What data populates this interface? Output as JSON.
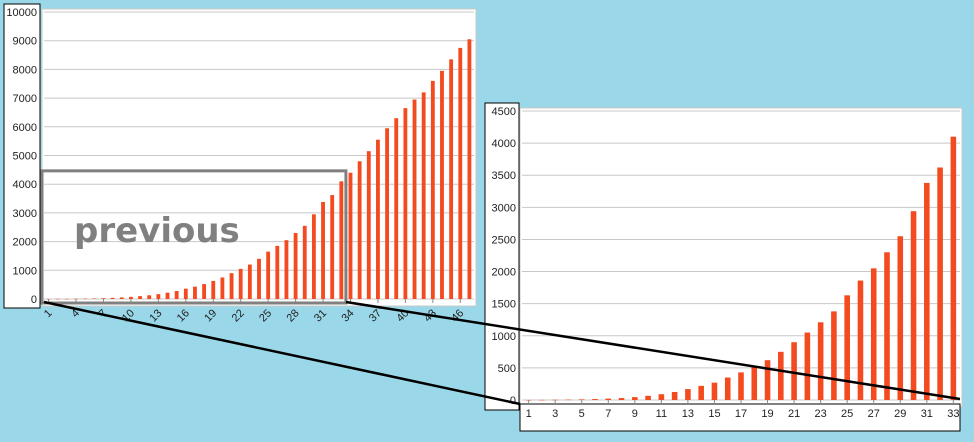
{
  "colors": {
    "background": "#9ad8e9",
    "bar": "#f34a1f",
    "panel": "#ffffff",
    "grid": "#c8c8c8",
    "highlight_box": "#808080",
    "connector": "#000000"
  },
  "annotation": {
    "previous_label": "previous"
  },
  "chart_data": [
    {
      "type": "bar",
      "title": "",
      "xlabel": "",
      "ylabel": "",
      "ylim": [
        0,
        10000
      ],
      "yticks": [
        0,
        1000,
        2000,
        3000,
        4000,
        5000,
        6000,
        7000,
        8000,
        9000,
        10000
      ],
      "x": [
        1,
        2,
        3,
        4,
        5,
        6,
        7,
        8,
        9,
        10,
        11,
        12,
        13,
        14,
        15,
        16,
        17,
        18,
        19,
        20,
        21,
        22,
        23,
        24,
        25,
        26,
        27,
        28,
        29,
        30,
        31,
        32,
        33,
        34,
        35,
        36,
        37,
        38,
        39,
        40,
        41,
        42,
        43,
        44,
        45,
        46,
        47
      ],
      "xtick_labels": [
        "1",
        "4",
        "7",
        "10",
        "13",
        "16",
        "19",
        "22",
        "25",
        "28",
        "31",
        "34",
        "37",
        "40",
        "43",
        "46"
      ],
      "values": [
        2,
        4,
        6,
        10,
        14,
        20,
        28,
        40,
        55,
        75,
        100,
        130,
        170,
        220,
        280,
        360,
        430,
        520,
        630,
        750,
        900,
        1050,
        1200,
        1400,
        1650,
        1850,
        2050,
        2300,
        2550,
        2950,
        3380,
        3620,
        4100,
        4400,
        4800,
        5150,
        5550,
        5950,
        6300,
        6650,
        6950,
        7200,
        7600,
        7950,
        8350,
        8750,
        9050
      ],
      "grid": true,
      "legend": "none"
    },
    {
      "type": "bar",
      "title": "",
      "xlabel": "",
      "ylabel": "",
      "ylim": [
        0,
        4500
      ],
      "yticks": [
        0,
        500,
        1000,
        1500,
        2000,
        2500,
        3000,
        3500,
        4000,
        4500
      ],
      "x": [
        1,
        2,
        3,
        4,
        5,
        6,
        7,
        8,
        9,
        10,
        11,
        12,
        13,
        14,
        15,
        16,
        17,
        18,
        19,
        20,
        21,
        22,
        23,
        24,
        25,
        26,
        27,
        28,
        29,
        30,
        31,
        32,
        33
      ],
      "xtick_labels": [
        "1",
        "3",
        "5",
        "7",
        "9",
        "11",
        "13",
        "15",
        "17",
        "19",
        "21",
        "23",
        "25",
        "27",
        "29",
        "31",
        "33"
      ],
      "values": [
        1,
        2,
        4,
        6,
        10,
        15,
        22,
        30,
        45,
        65,
        90,
        125,
        170,
        220,
        270,
        350,
        430,
        520,
        620,
        750,
        900,
        1050,
        1210,
        1380,
        1630,
        1860,
        2050,
        2300,
        2550,
        2940,
        3380,
        3620,
        4100
      ],
      "grid": true,
      "legend": "none"
    }
  ]
}
